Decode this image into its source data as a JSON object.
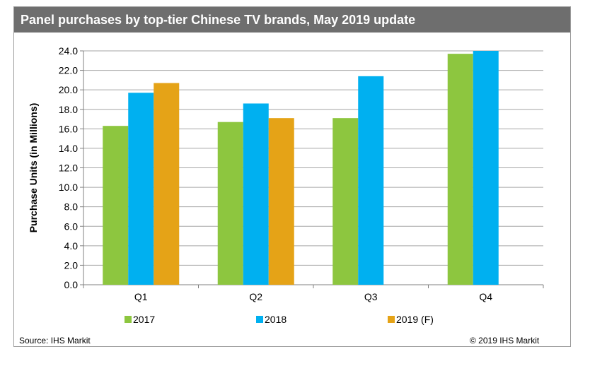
{
  "title": "Panel purchases by top-tier Chinese TV brands, May 2019 update",
  "source": "Source: IHS Markit",
  "copyright": "© 2019 IHS Markit",
  "colors": {
    "2017": "#8dc63f",
    "2018": "#00b0f0",
    "2019 (F)": "#e5a317",
    "title_bg": "#6e6e6e"
  },
  "chart_data": {
    "type": "bar",
    "categories": [
      "Q1",
      "Q2",
      "Q3",
      "Q4"
    ],
    "series": [
      {
        "name": "2017",
        "values": [
          16.3,
          16.7,
          17.1,
          23.7
        ]
      },
      {
        "name": "2018",
        "values": [
          19.7,
          18.6,
          21.4,
          24.0
        ]
      },
      {
        "name": "2019 (F)",
        "values": [
          20.7,
          17.1,
          null,
          null
        ]
      }
    ],
    "ylabel": "Purchase Units (in Millions)",
    "xlabel": "",
    "ylim": [
      0,
      24
    ],
    "yticks": [
      "0.0",
      "2.0",
      "4.0",
      "6.0",
      "8.0",
      "10.0",
      "12.0",
      "14.0",
      "16.0",
      "18.0",
      "20.0",
      "22.0",
      "24.0"
    ],
    "grid": true,
    "legend": "bottom"
  }
}
